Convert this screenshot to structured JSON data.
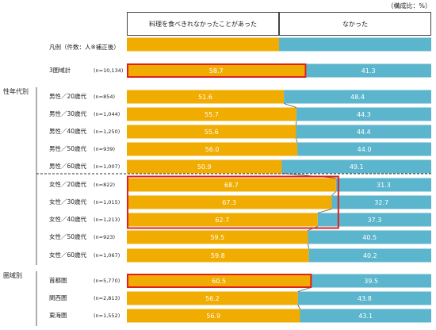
{
  "unit_note": "（構成比：%）",
  "legend_row_label": "凡例（件数：人※補正後）",
  "colors": {
    "yes": "#f0ac00",
    "no": "#5bb5cc",
    "highlight": "#e02020"
  },
  "chart_data": {
    "type": "bar",
    "stacked": true,
    "orientation": "horizontal",
    "series_names": [
      "料理を食べきれなかったことがあった",
      "なかった"
    ],
    "groups": [
      {
        "label": "",
        "rows": [
          {
            "label": "3圏域計",
            "n": "(n=10,134)",
            "yes": 58.7,
            "no": 41.3,
            "highlight": true
          }
        ]
      },
      {
        "label": "性年代別",
        "rows": [
          {
            "label": "男性／20歳代",
            "n": "(n=854)",
            "yes": 51.6,
            "no": 48.4
          },
          {
            "label": "男性／30歳代",
            "n": "(n=1,044)",
            "yes": 55.7,
            "no": 44.3
          },
          {
            "label": "男性／40歳代",
            "n": "(n=1,250)",
            "yes": 55.6,
            "no": 44.4
          },
          {
            "label": "男性／50歳代",
            "n": "(n=939)",
            "yes": 56.0,
            "no": 44.0
          },
          {
            "label": "男性／60歳代",
            "n": "(n=1,007)",
            "yes": 50.9,
            "no": 49.1
          },
          {
            "label": "女性／20歳代",
            "n": "(n=822)",
            "yes": 68.7,
            "no": 31.3
          },
          {
            "label": "女性／30歳代",
            "n": "(n=1,015)",
            "yes": 67.3,
            "no": 32.7
          },
          {
            "label": "女性／40歳代",
            "n": "(n=1,213)",
            "yes": 62.7,
            "no": 37.3
          },
          {
            "label": "女性／50歳代",
            "n": "(n=923)",
            "yes": 59.5,
            "no": 40.5
          },
          {
            "label": "女性／60歳代",
            "n": "(n=1,067)",
            "yes": 59.8,
            "no": 40.2
          }
        ]
      },
      {
        "label": "圏域別",
        "rows": [
          {
            "label": "首都圏",
            "n": "(n=5,770)",
            "yes": 60.5,
            "no": 39.5,
            "highlight": true
          },
          {
            "label": "関西圏",
            "n": "(n=2,813)",
            "yes": 56.2,
            "no": 43.8
          },
          {
            "label": "東海圏",
            "n": "(n=1,552)",
            "yes": 56.9,
            "no": 43.1
          }
        ]
      }
    ],
    "highlight_box_rows": [
      "女性／20歳代",
      "女性／30歳代",
      "女性／40歳代"
    ]
  }
}
